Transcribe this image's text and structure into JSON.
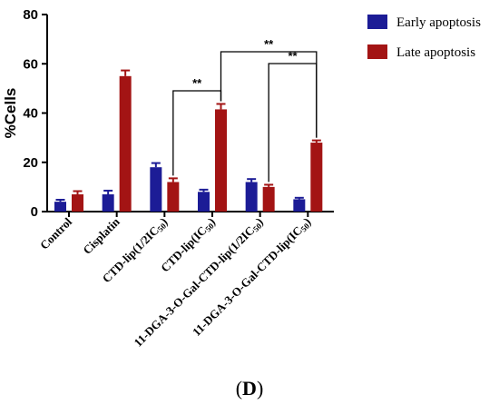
{
  "chart_data": {
    "type": "bar",
    "title": "",
    "xlabel": "",
    "ylabel": "%Cells",
    "ylim": [
      0,
      80
    ],
    "yticks": [
      0,
      20,
      40,
      60,
      80
    ],
    "categories": [
      "Control",
      "Cisplatin",
      "CTD-lip(1/2IC50)",
      "CTD-lip(IC50)",
      "11-DGA-3-O-Gal-CTD-lip(1/2IC50)",
      "11-DGA-3-O-Gal-CTD-lip(IC50)"
    ],
    "series": [
      {
        "name": "Early apoptosis",
        "color": "#1c1c96",
        "values": [
          4,
          7,
          18,
          8,
          12,
          5
        ],
        "errors": [
          0.8,
          1.5,
          1.7,
          0.9,
          1.2,
          0.6
        ]
      },
      {
        "name": "Late apoptosis",
        "color": "#a31414",
        "values": [
          7,
          55,
          12,
          41.5,
          10,
          28
        ],
        "errors": [
          1.3,
          2.3,
          1.5,
          2.2,
          0.9,
          0.9
        ]
      }
    ],
    "legend_position": "top-right",
    "significance": [
      {
        "from_category": 2,
        "from_series": 1,
        "to_category": 3,
        "to_series": 1,
        "label": "**"
      },
      {
        "from_category": 3,
        "from_series": 1,
        "to_category": 5,
        "to_series": 1,
        "label": "**"
      },
      {
        "from_category": 4,
        "from_series": 1,
        "to_category": 5,
        "to_series": 1,
        "label": "**"
      }
    ]
  },
  "panel_label": "D"
}
